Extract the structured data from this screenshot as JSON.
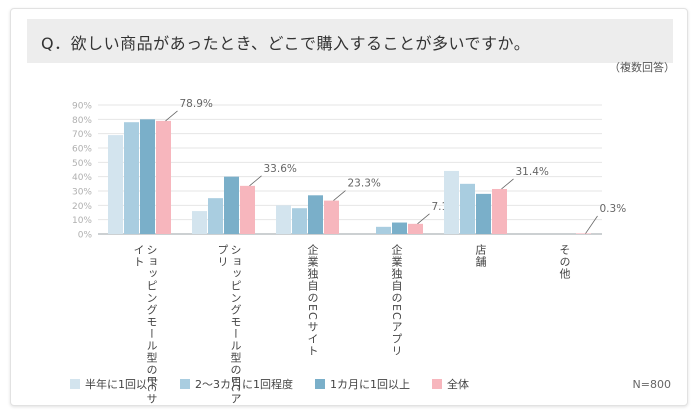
{
  "header": {
    "question": "Q．欲しい商品があったとき、どこで購入することが多いですか。",
    "note": "（複数回答）",
    "sample": "N=800"
  },
  "colors": {
    "series": [
      "#d3e4ee",
      "#a9cde0",
      "#7aafc9",
      "#f7b6bd"
    ],
    "grid": "#e6e6e6",
    "axis": "#9aa0a6",
    "tick_label": "#b0b0b0",
    "callout": "#666666"
  },
  "chart_data": {
    "type": "bar",
    "categories": [
      "ショッピングモール型の\nECサイト",
      "ショッピングモール型の\nECアプリ",
      "企業独自のECサイト",
      "企業独自のECアプリ",
      "店舗",
      "その他"
    ],
    "series": [
      {
        "name": "半年に1回以下",
        "values": [
          69,
          16,
          20,
          0,
          44,
          0
        ]
      },
      {
        "name": "2〜3カ月に1回程度",
        "values": [
          78,
          25,
          18,
          5,
          35,
          0
        ]
      },
      {
        "name": "1カ月に1回以上",
        "values": [
          80,
          40,
          27,
          8,
          28,
          0
        ]
      },
      {
        "name": "全体",
        "values": [
          78.9,
          33.6,
          23.3,
          7.1,
          31.4,
          0.3
        ]
      }
    ],
    "data_labels": [
      "78.9%",
      "33.6%",
      "23.3%",
      "7.1%",
      "31.4%",
      "0.3%"
    ],
    "y_ticks": [
      "0%",
      "10%",
      "20%",
      "30%",
      "40%",
      "50%",
      "60%",
      "70%",
      "80%",
      "90%"
    ],
    "ylim": [
      0,
      90
    ],
    "grid": true,
    "legend_position": "bottom"
  }
}
